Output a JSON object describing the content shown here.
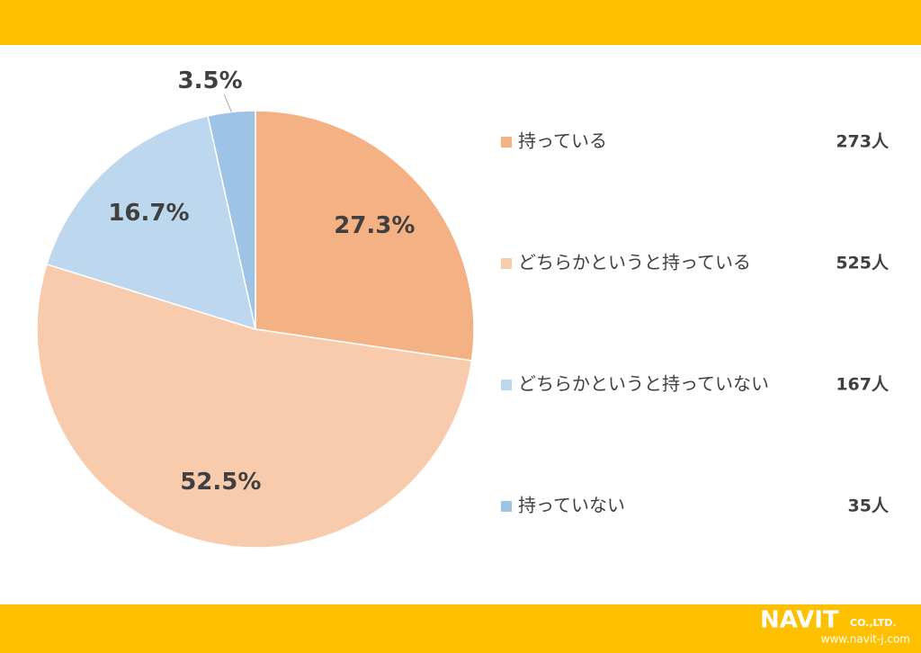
{
  "chart_data": {
    "type": "pie",
    "categories": [
      "持っている",
      "どちらかというと持っている",
      "どちらかというと持っていない",
      "持っていない"
    ],
    "values": [
      27.3,
      52.5,
      16.7,
      3.5
    ],
    "value_labels": [
      "27.3%",
      "52.5%",
      "16.7%",
      "3.5%"
    ],
    "count_labels": [
      "273人",
      "525人",
      "167人",
      "35人"
    ],
    "colors": [
      "#f4b183",
      "#f8cbad",
      "#bdd7ee",
      "#9dc3e6"
    ],
    "legend": "right"
  },
  "footer": {
    "logo": "NAVIT",
    "company": "CO.,LTD.",
    "url": "www.navit-j.com"
  }
}
